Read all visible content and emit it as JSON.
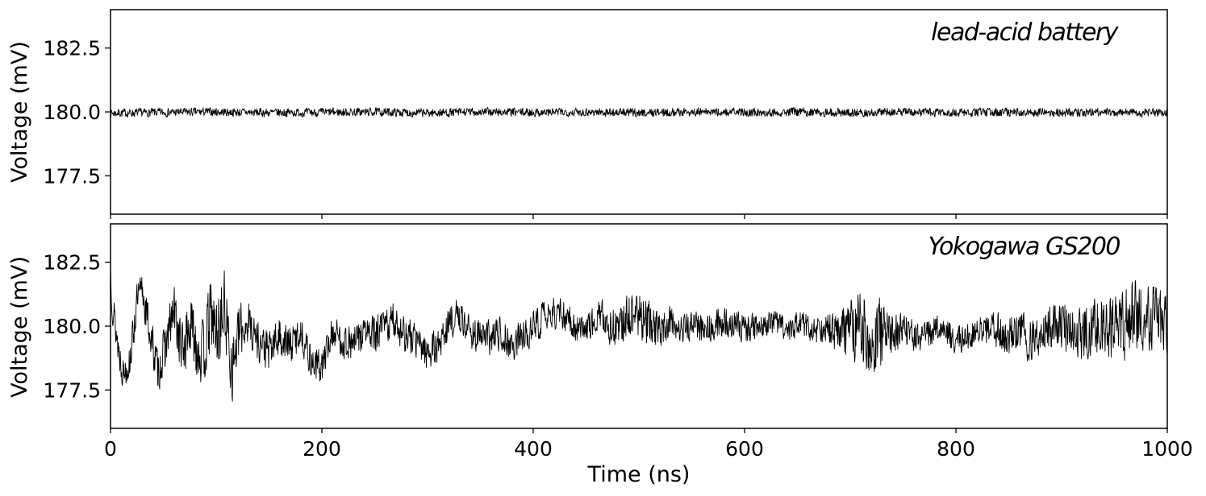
{
  "chart_data": [
    {
      "type": "line",
      "annotation": "lead-acid battery",
      "xlabel": "",
      "ylabel": "Voltage (mV)",
      "xlim": [
        0,
        1000
      ],
      "ylim": [
        176,
        184
      ],
      "yticks": [
        177.5,
        180.0,
        182.5
      ],
      "ytick_labels": [
        "177.5",
        "180.0",
        "182.5"
      ],
      "xticks": [
        0,
        200,
        400,
        600,
        800,
        1000
      ],
      "xtick_labels": [],
      "grid": false,
      "series": [
        {
          "color": "#000000",
          "x": [
            0,
            50,
            100,
            150,
            200,
            250,
            300,
            350,
            400,
            450,
            500,
            550,
            600,
            650,
            700,
            750,
            800,
            850,
            900,
            950,
            1000
          ],
          "y": [
            179.95,
            179.98,
            180.0,
            179.97,
            179.98,
            180.0,
            179.96,
            180.0,
            179.98,
            180.0,
            179.97,
            180.0,
            179.98,
            180.0,
            179.97,
            180.0,
            179.96,
            180.0,
            179.98,
            180.0,
            179.97
          ],
          "noise_amplitude": 0.2
        }
      ]
    },
    {
      "type": "line",
      "annotation": "Yokogawa GS200",
      "xlabel": "Time (ns)",
      "ylabel": "Voltage (mV)",
      "xlim": [
        0,
        1000
      ],
      "ylim": [
        176,
        184
      ],
      "yticks": [
        177.5,
        180.0,
        182.5
      ],
      "ytick_labels": [
        "177.5",
        "180.0",
        "182.5"
      ],
      "xticks": [
        0,
        200,
        400,
        600,
        800,
        1000
      ],
      "xtick_labels": [
        "0",
        "200",
        "400",
        "600",
        "800",
        "1000"
      ],
      "grid": false,
      "series": [
        {
          "color": "#000000",
          "x": [
            0,
            3,
            8,
            12,
            18,
            25,
            30,
            38,
            45,
            52,
            60,
            68,
            75,
            82,
            88,
            95,
            100,
            108,
            115,
            122,
            130,
            140,
            150,
            160,
            170,
            180,
            190,
            200,
            210,
            220,
            230,
            240,
            250,
            260,
            270,
            280,
            290,
            300,
            310,
            320,
            330,
            340,
            350,
            360,
            370,
            380,
            390,
            400,
            410,
            420,
            430,
            440,
            450,
            460,
            470,
            480,
            490,
            500,
            510,
            520,
            530,
            540,
            550,
            560,
            570,
            580,
            590,
            600,
            610,
            620,
            630,
            640,
            650,
            660,
            670,
            680,
            690,
            700,
            710,
            720,
            730,
            740,
            750,
            760,
            770,
            780,
            790,
            800,
            810,
            820,
            830,
            840,
            850,
            860,
            870,
            880,
            890,
            900,
            910,
            920,
            930,
            940,
            950,
            960,
            970,
            980,
            990,
            1000
          ],
          "y": [
            182.2,
            180.5,
            179.0,
            178.2,
            178.6,
            180.9,
            181.4,
            179.6,
            178.2,
            179.2,
            180.6,
            179.0,
            180.0,
            179.3,
            178.8,
            180.5,
            179.6,
            180.7,
            178.4,
            179.7,
            180.2,
            179.4,
            179.0,
            179.6,
            179.2,
            179.8,
            178.6,
            178.4,
            179.8,
            179.4,
            179.3,
            179.8,
            179.6,
            180.0,
            180.2,
            179.6,
            179.4,
            179.0,
            179.2,
            180.1,
            180.4,
            179.8,
            179.6,
            179.5,
            179.8,
            179.2,
            179.6,
            180.0,
            180.3,
            180.5,
            180.4,
            180.0,
            180.0,
            180.3,
            180.2,
            179.8,
            180.5,
            180.4,
            180.1,
            179.8,
            180.2,
            179.9,
            180.0,
            179.9,
            180.0,
            180.2,
            180.1,
            179.9,
            180.0,
            180.2,
            180.1,
            179.9,
            180.1,
            180.0,
            179.8,
            179.9,
            179.8,
            179.7,
            180.0,
            179.8,
            179.6,
            179.8,
            179.8,
            179.6,
            179.5,
            179.9,
            179.8,
            179.5,
            179.5,
            179.8,
            179.7,
            179.9,
            179.6,
            179.9,
            179.4,
            179.7,
            180.0,
            180.1,
            179.8,
            179.7,
            180.0,
            180.1,
            179.8,
            180.2,
            180.5,
            180.2,
            180.4,
            180.1
          ],
          "noise_amplitude": [
            1.2,
            1.0,
            0.9,
            0.8,
            0.8,
            0.9,
            0.9,
            1.0,
            1.0,
            1.1,
            1.3,
            1.4,
            1.5,
            1.6,
            1.6,
            1.7,
            1.8,
            1.8,
            1.6,
            1.4,
            1.1,
            1.0,
            1.0,
            0.9,
            0.9,
            0.8,
            0.8,
            0.8,
            0.8,
            0.8,
            0.8,
            0.9,
            0.9,
            0.9,
            0.9,
            0.9,
            0.8,
            0.8,
            0.8,
            0.8,
            0.8,
            0.8,
            0.8,
            0.8,
            0.8,
            0.8,
            0.8,
            0.8,
            0.8,
            0.8,
            0.7,
            0.7,
            0.7,
            0.8,
            0.9,
            0.9,
            1.0,
            1.2,
            1.0,
            0.8,
            0.7,
            0.7,
            0.7,
            0.7,
            0.7,
            0.7,
            0.7,
            0.7,
            0.6,
            0.6,
            0.6,
            0.6,
            0.6,
            0.6,
            0.6,
            0.8,
            1.0,
            1.5,
            1.9,
            1.9,
            1.6,
            1.0,
            0.8,
            0.7,
            0.7,
            0.7,
            0.7,
            0.7,
            0.7,
            0.7,
            0.8,
            0.9,
            0.9,
            0.9,
            1.0,
            1.0,
            1.0,
            1.1,
            1.2,
            1.2,
            1.3,
            1.4,
            1.5,
            1.7,
            1.7,
            1.6,
            1.5,
            1.4
          ]
        }
      ]
    }
  ]
}
